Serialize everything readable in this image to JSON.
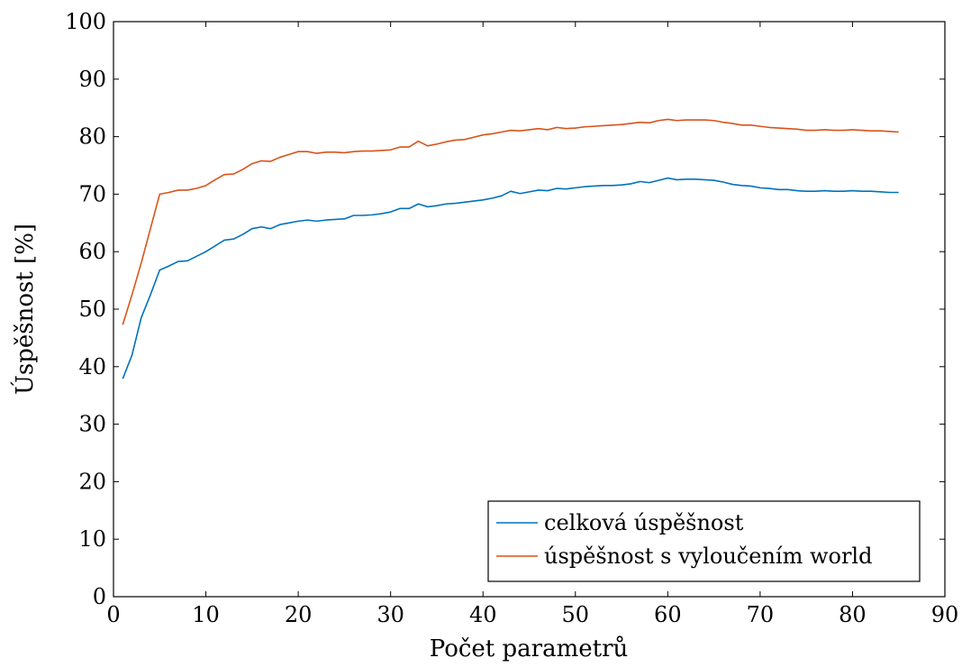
{
  "chart_data": {
    "type": "line",
    "xlabel": "Počet parametrů",
    "ylabel": "Úspěšnost [%]",
    "xlim": [
      0,
      90
    ],
    "ylim": [
      0,
      100
    ],
    "xticks": [
      0,
      10,
      20,
      30,
      40,
      50,
      60,
      70,
      80,
      90
    ],
    "yticks": [
      0,
      10,
      20,
      30,
      40,
      50,
      60,
      70,
      80,
      90,
      100
    ],
    "grid": false,
    "legend_position": "bottom-right",
    "x": [
      1,
      2,
      3,
      4,
      5,
      6,
      7,
      8,
      9,
      10,
      11,
      12,
      13,
      14,
      15,
      16,
      17,
      18,
      19,
      20,
      21,
      22,
      23,
      24,
      25,
      26,
      27,
      28,
      29,
      30,
      31,
      32,
      33,
      34,
      35,
      36,
      37,
      38,
      39,
      40,
      41,
      42,
      43,
      44,
      45,
      46,
      47,
      48,
      49,
      50,
      51,
      52,
      53,
      54,
      55,
      56,
      57,
      58,
      59,
      60,
      61,
      62,
      63,
      64,
      65,
      66,
      67,
      68,
      69,
      70,
      71,
      72,
      73,
      74,
      75,
      76,
      77,
      78,
      79,
      80,
      81,
      82,
      83,
      84,
      85
    ],
    "series": [
      {
        "name": "celková úspěšnost",
        "color": "#0072bd",
        "values": [
          37.9,
          42.0,
          48.5,
          52.5,
          56.8,
          57.5,
          58.3,
          58.4,
          59.2,
          60.0,
          61.0,
          62.0,
          62.2,
          63.0,
          64.0,
          64.3,
          64.0,
          64.7,
          65.0,
          65.3,
          65.5,
          65.3,
          65.5,
          65.6,
          65.7,
          66.3,
          66.3,
          66.4,
          66.6,
          66.9,
          67.5,
          67.5,
          68.3,
          67.8,
          68.0,
          68.3,
          68.4,
          68.6,
          68.8,
          69.0,
          69.3,
          69.7,
          70.5,
          70.1,
          70.4,
          70.7,
          70.6,
          71.0,
          70.9,
          71.1,
          71.3,
          71.4,
          71.5,
          71.5,
          71.6,
          71.8,
          72.2,
          72.0,
          72.4,
          72.8,
          72.5,
          72.6,
          72.6,
          72.5,
          72.4,
          72.1,
          71.7,
          71.5,
          71.4,
          71.1,
          71.0,
          70.8,
          70.8,
          70.6,
          70.5,
          70.5,
          70.6,
          70.5,
          70.5,
          70.6,
          70.5,
          70.5,
          70.4,
          70.3,
          70.3
        ]
      },
      {
        "name": "úspěšnost s vyloučením world",
        "color": "#d95319",
        "values": [
          47.3,
          52.5,
          58.0,
          64.0,
          70.0,
          70.3,
          70.7,
          70.7,
          71.0,
          71.5,
          72.5,
          73.4,
          73.5,
          74.3,
          75.3,
          75.8,
          75.7,
          76.4,
          76.9,
          77.4,
          77.4,
          77.1,
          77.3,
          77.3,
          77.2,
          77.4,
          77.5,
          77.5,
          77.6,
          77.7,
          78.2,
          78.2,
          79.2,
          78.4,
          78.7,
          79.1,
          79.4,
          79.5,
          79.9,
          80.3,
          80.5,
          80.8,
          81.1,
          81.0,
          81.2,
          81.4,
          81.2,
          81.6,
          81.4,
          81.5,
          81.7,
          81.8,
          81.9,
          82.0,
          82.1,
          82.3,
          82.5,
          82.4,
          82.8,
          83.0,
          82.8,
          82.9,
          82.9,
          82.9,
          82.8,
          82.5,
          82.3,
          82.0,
          82.0,
          81.8,
          81.6,
          81.5,
          81.4,
          81.3,
          81.1,
          81.1,
          81.2,
          81.1,
          81.1,
          81.2,
          81.1,
          81.0,
          81.0,
          80.9,
          80.8
        ]
      }
    ]
  }
}
